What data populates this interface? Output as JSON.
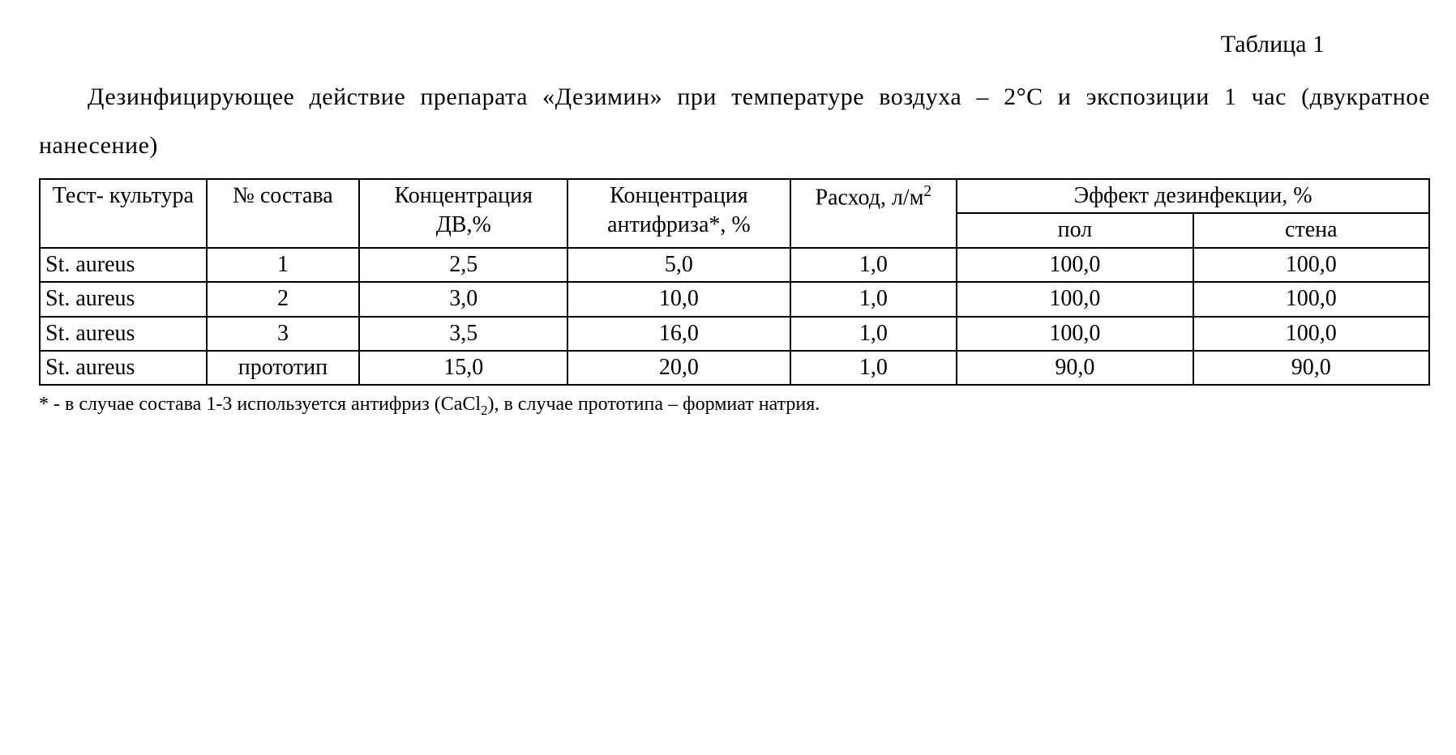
{
  "table_number": "Таблица 1",
  "caption_html": "Дезинфицирующее действие препарата «Дезимин» при температуре воздуха – 2°С и экспозиции 1 час (двукратное нанесение)",
  "headers": {
    "col1": "Тест-\nкультура",
    "col2": "№ состава",
    "col3": "Концентрация ДВ,%",
    "col4": "Концентрация антифриза*, %",
    "col5_html": "Расход, л/м<sup>2</sup>",
    "col6": "Эффект дезинфекции, %",
    "col6a": "пол",
    "col6b": "стена"
  },
  "rows": [
    {
      "culture": "St. aureus",
      "num": "1",
      "dv": "2,5",
      "anti": "5,0",
      "flow": "1,0",
      "floor": "100,0",
      "wall": "100,0"
    },
    {
      "culture": "St. aureus",
      "num": "2",
      "dv": "3,0",
      "anti": "10,0",
      "flow": "1,0",
      "floor": "100,0",
      "wall": "100,0"
    },
    {
      "culture": "St. aureus",
      "num": "3",
      "dv": "3,5",
      "anti": "16,0",
      "flow": "1,0",
      "floor": "100,0",
      "wall": "100,0"
    },
    {
      "culture": "St. aureus",
      "num": "прототип",
      "dv": "15,0",
      "anti": "20,0",
      "flow": "1,0",
      "floor": "90,0",
      "wall": "90,0"
    }
  ],
  "footnote_html": "* - в случае состава 1-3 используется антифриз (CaCl<sub>2</sub>), в случае прототипа – формиат натрия.",
  "col_widths": [
    "12%",
    "11%",
    "15%",
    "16%",
    "12%",
    "17%",
    "17%"
  ]
}
